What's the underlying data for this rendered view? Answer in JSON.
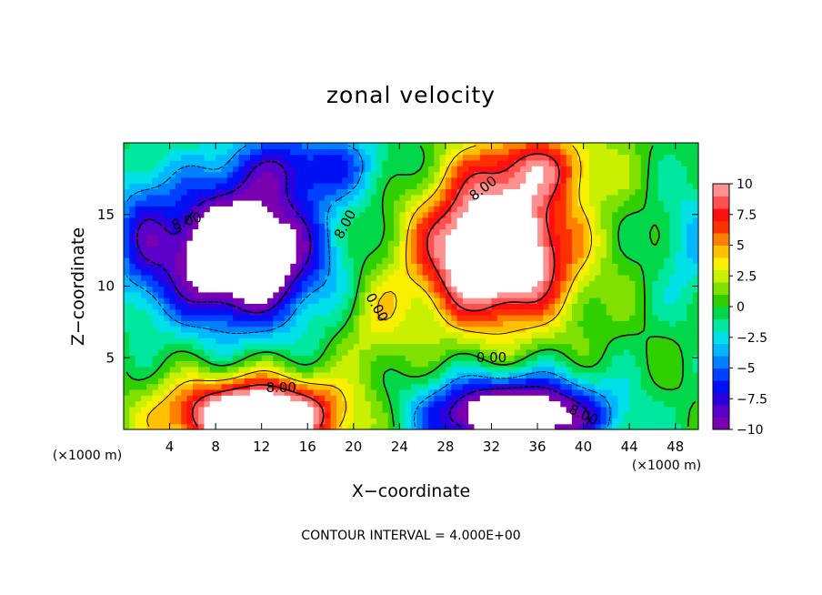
{
  "chart_data": {
    "type": "heatmap",
    "title": "zonal velocity",
    "xlabel": "X−coordinate",
    "ylabel": "Z−coordinate",
    "x_unit_left": "(×1000 m)",
    "x_unit_right": "(×1000 m)",
    "footer": "CONTOUR INTERVAL = 4.000E+00",
    "xlim": [
      0,
      50
    ],
    "ylim": [
      0,
      20
    ],
    "x_ticks": [
      {
        "v": 4,
        "label": "4"
      },
      {
        "v": 8,
        "label": "8"
      },
      {
        "v": 12,
        "label": "12"
      },
      {
        "v": 16,
        "label": "16"
      },
      {
        "v": 20,
        "label": "20"
      },
      {
        "v": 24,
        "label": "24"
      },
      {
        "v": 28,
        "label": "28"
      },
      {
        "v": 32,
        "label": "32"
      },
      {
        "v": 36,
        "label": "36"
      },
      {
        "v": 40,
        "label": "40"
      },
      {
        "v": 44,
        "label": "44"
      },
      {
        "v": 48,
        "label": "48"
      }
    ],
    "y_ticks": [
      {
        "v": 5,
        "label": "5"
      },
      {
        "v": 10,
        "label": "10"
      },
      {
        "v": 15,
        "label": "15"
      }
    ],
    "colorbar": {
      "vmin": -10,
      "vmax": 10,
      "ticks": [
        {
          "v": 10,
          "label": "10"
        },
        {
          "v": 7.5,
          "label": "7.5"
        },
        {
          "v": 5,
          "label": "5"
        },
        {
          "v": 2.5,
          "label": "2.5"
        },
        {
          "v": 0,
          "label": "0"
        },
        {
          "v": -2.5,
          "label": "−2.5"
        },
        {
          "v": -5,
          "label": "−5"
        },
        {
          "v": -7.5,
          "label": "−7.5"
        },
        {
          "v": -10,
          "label": "−10"
        }
      ]
    },
    "contour_labels": [
      {
        "text": "8.00",
        "x": 5.5,
        "y": 14.5,
        "rot": -18
      },
      {
        "text": "8.00",
        "x": 19.3,
        "y": 14.3,
        "rot": -62
      },
      {
        "text": "8.00",
        "x": 31.3,
        "y": 16.8,
        "rot": -38
      },
      {
        "text": "0.00",
        "x": 22.0,
        "y": 8.5,
        "rot": 60
      },
      {
        "text": "0.00",
        "x": 32.0,
        "y": 5.0,
        "rot": 0
      },
      {
        "text": "8.00",
        "x": 13.7,
        "y": 2.9,
        "rot": 0
      },
      {
        "text": "8.00",
        "x": 40.0,
        "y": 1.0,
        "rot": 25
      }
    ],
    "features": [
      {
        "name": "positive-jet-upper",
        "x": 32.3,
        "y": 12.5,
        "sx": 6.5,
        "sy": 5.0,
        "amp": 16
      },
      {
        "name": "positive-jet-upper-top",
        "x": 36.0,
        "y": 18.5,
        "sx": 6.0,
        "sy": 2.5,
        "amp": 6
      },
      {
        "name": "negative-jet-upper",
        "x": 10.0,
        "y": 12.3,
        "sx": 7.0,
        "sy": 4.8,
        "amp": -16
      },
      {
        "name": "negative-jet-upper-top",
        "x": 16.0,
        "y": 18.5,
        "sx": 7.0,
        "sy": 2.5,
        "amp": -6
      },
      {
        "name": "positive-jet-lower",
        "x": 11.5,
        "y": 1.0,
        "sx": 7.5,
        "sy": 2.6,
        "amp": 15
      },
      {
        "name": "negative-jet-lower",
        "x": 34.0,
        "y": 1.0,
        "sx": 7.5,
        "sy": 2.6,
        "amp": -15
      },
      {
        "name": "weak-positive-tongue",
        "x": 22.0,
        "y": 7.5,
        "sx": 3.0,
        "sy": 3.5,
        "amp": 3
      },
      {
        "name": "weak-negative-left",
        "x": 1.5,
        "y": 14.0,
        "sx": 2.5,
        "sy": 5.0,
        "amp": -4
      },
      {
        "name": "weak-negative-right",
        "x": 49.5,
        "y": 13.0,
        "sx": 3.0,
        "sy": 5.0,
        "amp": -3
      }
    ]
  }
}
